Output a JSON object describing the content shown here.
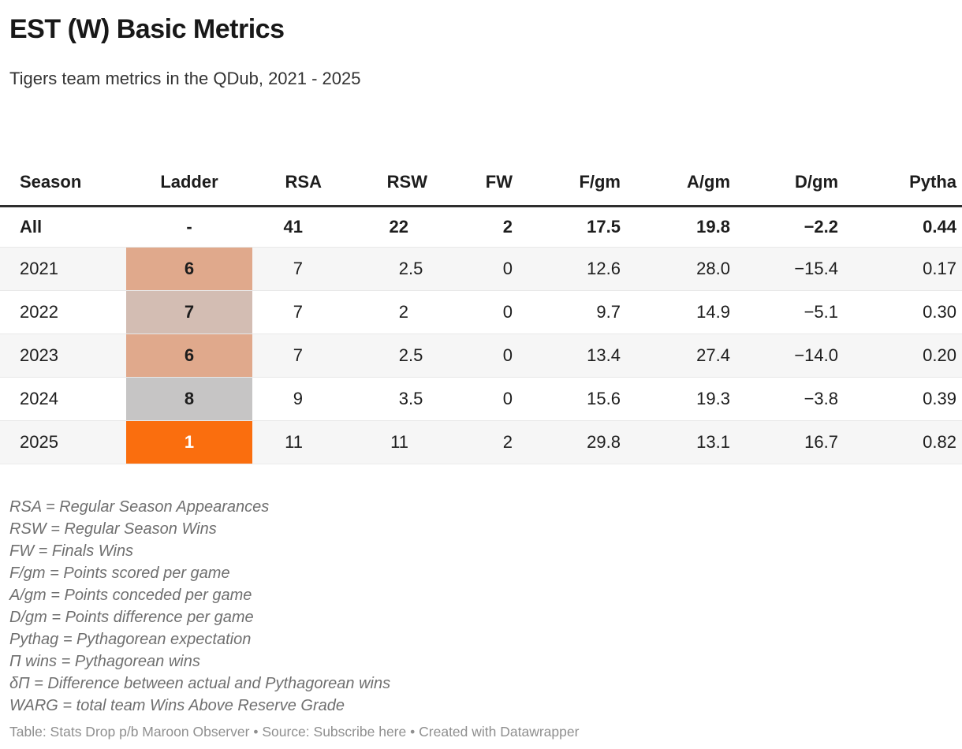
{
  "header": {
    "title": "EST (W) Basic Metrics",
    "subtitle": "Tigers team metrics in the QDub, 2021 - 2025"
  },
  "table": {
    "columns": [
      {
        "label": "Season",
        "align": "al",
        "width": 160,
        "fp": 0
      },
      {
        "label": "Ladder",
        "align": "ac",
        "width": 160,
        "fp": 0
      },
      {
        "label": "RSA",
        "align": "ar",
        "width": 88,
        "fp": 24
      },
      {
        "label": "RSW",
        "align": "ar",
        "width": 134,
        "fp": 24
      },
      {
        "label": "FW",
        "align": "ar",
        "width": 108,
        "fp": 0
      },
      {
        "label": "F/gm",
        "align": "ar",
        "width": 137,
        "fp": 0
      },
      {
        "label": "A/gm",
        "align": "ar",
        "width": 139,
        "fp": 0
      },
      {
        "label": "D/gm",
        "align": "ar",
        "width": 137,
        "fp": 0
      },
      {
        "label": "Pytha",
        "align": "ar",
        "width": 157,
        "fp": 0
      }
    ],
    "rows": [
      {
        "season": "All",
        "bold": true,
        "bg": "#ffffff",
        "ladder": {
          "text": "-",
          "bg": "",
          "color": ""
        },
        "values": [
          "41",
          "22",
          "2",
          "17.5",
          "19.8",
          "−2.2",
          "0.44"
        ]
      },
      {
        "season": "2021",
        "bold": false,
        "bg": "#f6f6f6",
        "ladder": {
          "text": "6",
          "bg": "#e0a98c",
          "color": ""
        },
        "values": [
          "7",
          "2.5",
          "0",
          "12.6",
          "28.0",
          "−15.4",
          "0.17"
        ]
      },
      {
        "season": "2022",
        "bold": false,
        "bg": "#ffffff",
        "ladder": {
          "text": "7",
          "bg": "#d3bdb3",
          "color": ""
        },
        "values": [
          "7",
          "2",
          "0",
          "9.7",
          "14.9",
          "−5.1",
          "0.30"
        ]
      },
      {
        "season": "2023",
        "bold": false,
        "bg": "#f6f6f6",
        "ladder": {
          "text": "6",
          "bg": "#e0a98c",
          "color": ""
        },
        "values": [
          "7",
          "2.5",
          "0",
          "13.4",
          "27.4",
          "−14.0",
          "0.20"
        ]
      },
      {
        "season": "2024",
        "bold": false,
        "bg": "#ffffff",
        "ladder": {
          "text": "8",
          "bg": "#c6c5c5",
          "color": ""
        },
        "values": [
          "9",
          "3.5",
          "0",
          "15.6",
          "19.3",
          "−3.8",
          "0.39"
        ]
      },
      {
        "season": "2025",
        "bold": false,
        "bg": "#f6f6f6",
        "ladder": {
          "text": "1",
          "bg": "#fa6e0e",
          "color": "#ffffff"
        },
        "values": [
          "11",
          "11",
          "2",
          "29.8",
          "13.1",
          "16.7",
          "0.82"
        ]
      }
    ]
  },
  "colors": {
    "rank_mid": "#e0a98c",
    "rank_seven": "#d3bdb3",
    "rank_eight": "#c6c5c5",
    "rank_first": "#fa6e0e",
    "stripe": "#f6f6f6",
    "header_rule": "#2e2e2e"
  },
  "footnotes": [
    "RSA = Regular Season Appearances",
    "RSW = Regular Season Wins",
    "FW = Finals Wins",
    "F/gm = Points scored per game",
    "A/gm = Points conceded per game",
    "D/gm = Points difference per game",
    "Pythag = Pythagorean expectation",
    "Π wins = Pythagorean wins",
    "δΠ = Difference between actual and Pythagorean wins",
    "WARG = total team Wins Above Reserve Grade"
  ],
  "footer": {
    "table_label": "Table: Stats Drop p/b Maroon Observer",
    "separator": "•",
    "source_label": "Source:",
    "source_link": "Subscribe here",
    "created": "Created with Datawrapper"
  },
  "chart_data": {
    "type": "table",
    "title": "EST (W) Basic Metrics",
    "subtitle": "Tigers team metrics in the QDub, 2021 - 2025",
    "columns": [
      "Season",
      "Ladder",
      "RSA",
      "RSW",
      "FW",
      "F/gm",
      "A/gm",
      "D/gm",
      "Pytha"
    ],
    "rows": [
      [
        "All",
        null,
        41,
        22,
        2,
        17.5,
        19.8,
        -2.2,
        0.44
      ],
      [
        "2021",
        6,
        7,
        2.5,
        0,
        12.6,
        28.0,
        -15.4,
        0.17
      ],
      [
        "2022",
        7,
        7,
        2,
        0,
        9.7,
        14.9,
        -5.1,
        0.3
      ],
      [
        "2023",
        6,
        7,
        2.5,
        0,
        13.4,
        27.4,
        -14.0,
        0.2
      ],
      [
        "2024",
        8,
        9,
        3.5,
        0,
        15.6,
        19.3,
        -3.8,
        0.39
      ],
      [
        "2025",
        1,
        11,
        11,
        2,
        29.8,
        13.1,
        16.7,
        0.82
      ]
    ],
    "ladder_cell_colors": {
      "2021": "#e0a98c",
      "2022": "#d3bdb3",
      "2023": "#e0a98c",
      "2024": "#c6c5c5",
      "2025": "#fa6e0e"
    },
    "layout_hints": {
      "numbers_align": "right",
      "ladder_align": "center",
      "striped_rows": true,
      "grid": "horizontal-only"
    }
  }
}
